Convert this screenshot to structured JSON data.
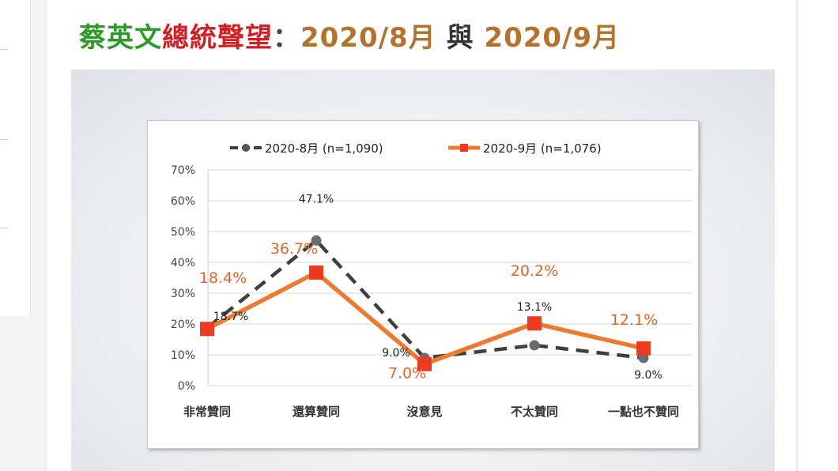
{
  "title": {
    "part1": "蔡英文",
    "part2": "總統聲望",
    "colon": "：",
    "part4": "2020/8月",
    "part5": "與",
    "part6": "2020/9月"
  },
  "chart_data": {
    "type": "line",
    "categories": [
      "非常贊同",
      "還算贊同",
      "沒意見",
      "不太贊同",
      "一點也不贊同"
    ],
    "ylim": [
      0,
      70
    ],
    "yticks": [
      "0%",
      "10%",
      "20%",
      "30%",
      "40%",
      "50%",
      "60%",
      "70%"
    ],
    "grid": true,
    "legend_position": "top",
    "series": [
      {
        "name": "2020-8月 (n=1,090)",
        "values": [
          18.7,
          47.1,
          9.0,
          13.1,
          9.0
        ],
        "labels": [
          "18.7%",
          "47.1%",
          "9.0%",
          "13.1%",
          "9.0%"
        ],
        "color": "#3f3f3f",
        "style": "dashed"
      },
      {
        "name": "2020-9月 (n=1,076)",
        "values": [
          18.4,
          36.7,
          7.0,
          20.2,
          12.1
        ],
        "labels": [
          "18.4%",
          "36.7%",
          "7.0%",
          "20.2%",
          "12.1%"
        ],
        "color": "#ec7b30",
        "style": "solid"
      }
    ]
  }
}
